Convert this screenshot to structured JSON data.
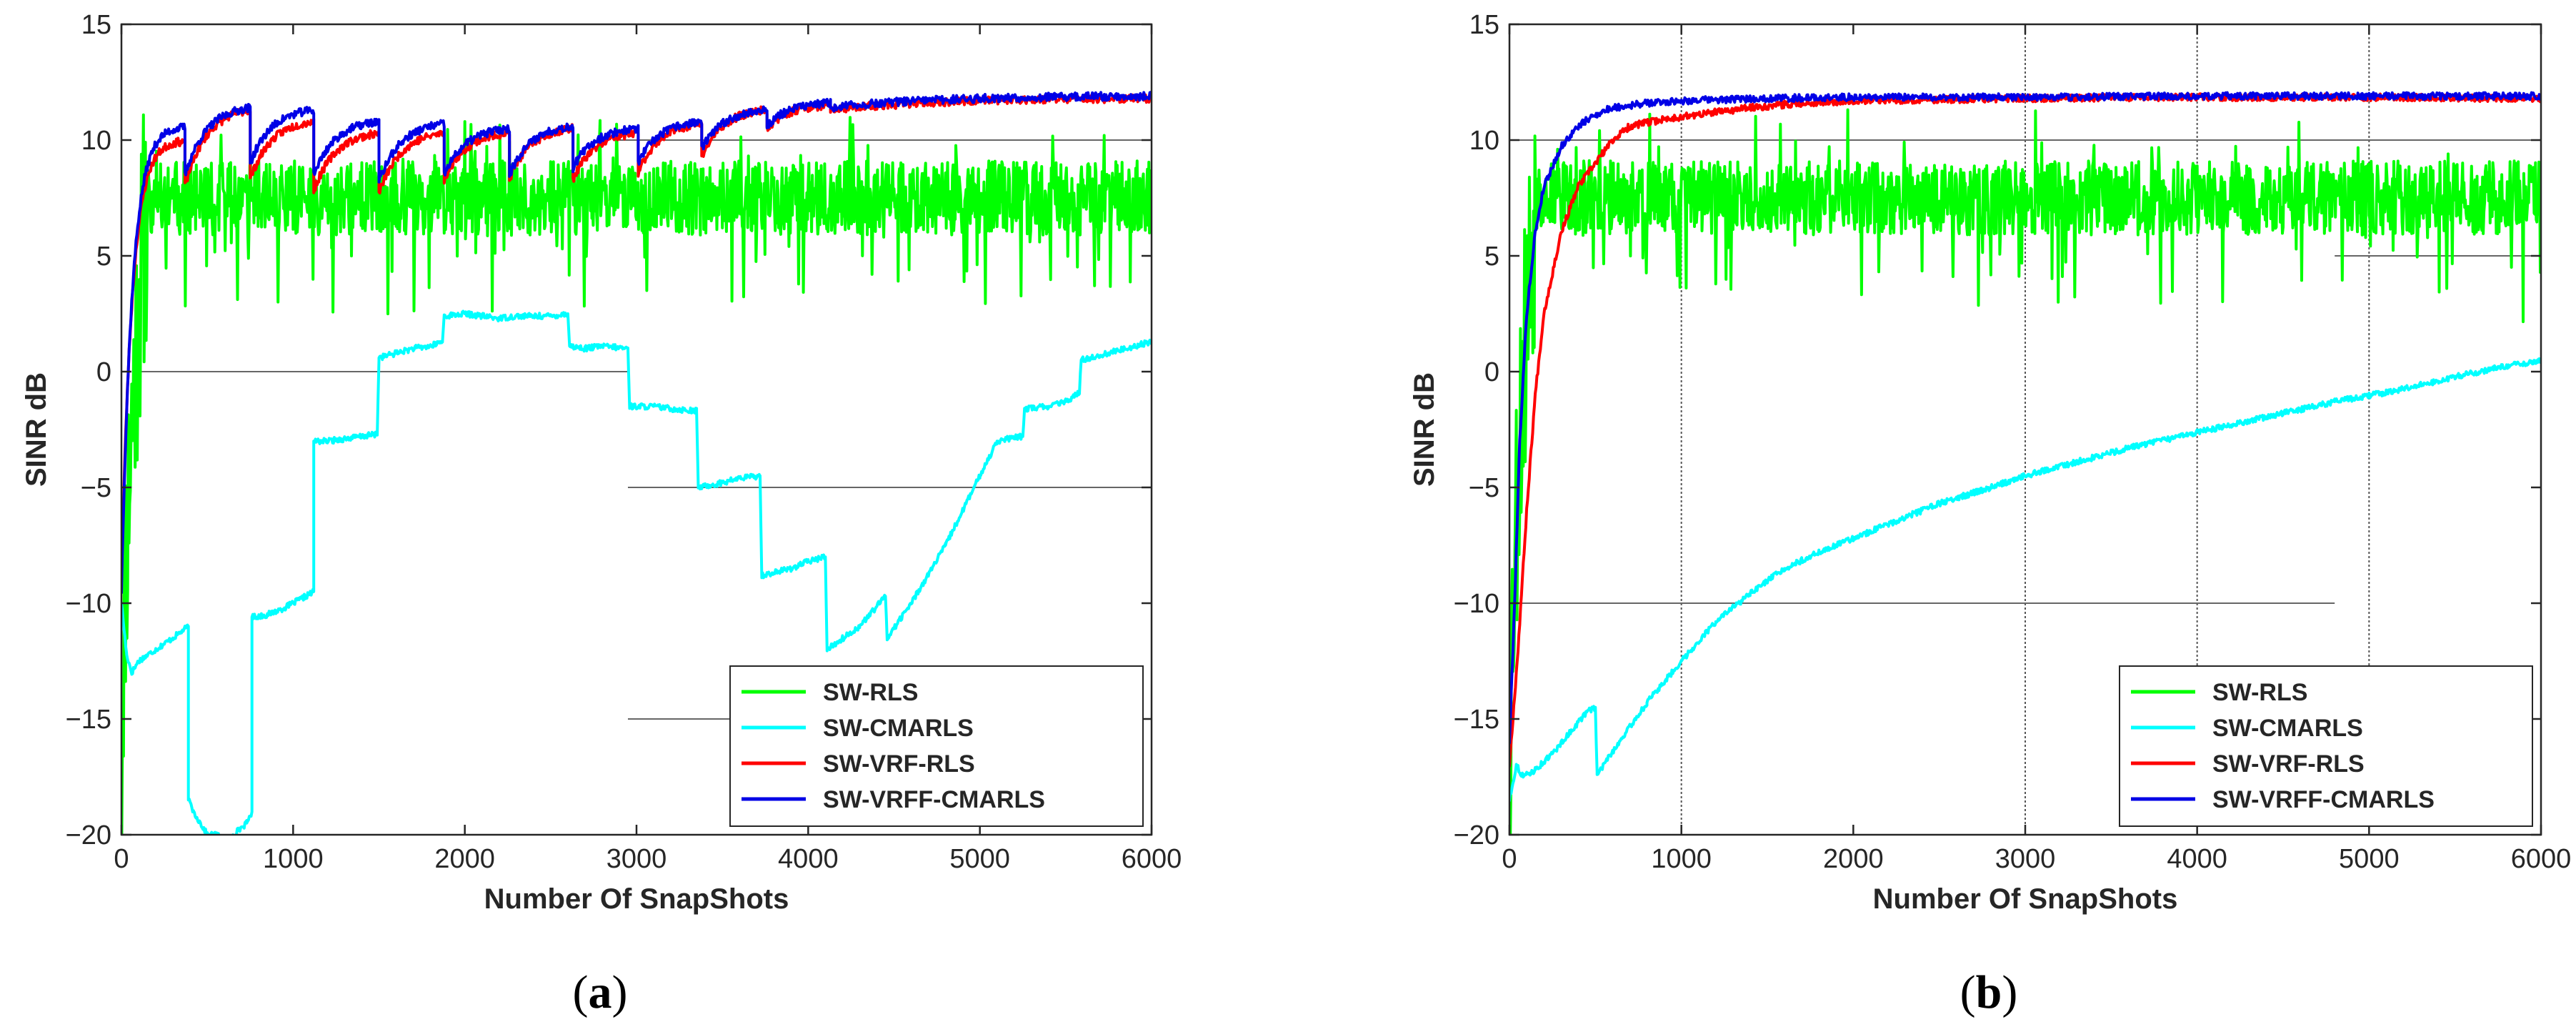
{
  "chart_data": [
    {
      "type": "line",
      "panel_label": "a",
      "xlabel": "Number Of SnapShots",
      "ylabel": "SINR dB",
      "xlim": [
        0,
        6000
      ],
      "ylim": [
        -20,
        15
      ],
      "xticks": [
        0,
        1000,
        2000,
        3000,
        4000,
        5000,
        6000
      ],
      "yticks": [
        -20,
        -15,
        -10,
        -5,
        0,
        5,
        10,
        15
      ],
      "legend_position": "bottom-right",
      "reference_lines": [
        {
          "y": 10,
          "x": [
            2900,
            6000
          ]
        },
        {
          "y": 0,
          "x": [
            100,
            2950
          ]
        },
        {
          "y": -5,
          "x": [
            2950,
            6000
          ]
        },
        {
          "y": -15,
          "x": [
            2950,
            6000
          ]
        }
      ],
      "series": [
        {
          "name": "SW-RLS",
          "color": "#00ff00",
          "kind": "noisy",
          "start": -19,
          "rise_end": 150,
          "mean": 7.5,
          "amp": 1.6,
          "seed": 11
        },
        {
          "name": "SW-CMARLS",
          "color": "#00ffff",
          "kind": "path",
          "x": [
            0,
            30,
            60,
            100,
            200,
            300,
            390,
            390,
            420,
            500,
            560,
            600,
            650,
            730,
            760,
            760,
            850,
            950,
            1050,
            1120,
            1120,
            1200,
            1300,
            1400,
            1490,
            1500,
            1600,
            1700,
            1800,
            1870,
            1880,
            2000,
            2100,
            2200,
            2300,
            2500,
            2600,
            2610,
            2700,
            2800,
            2950,
            2960,
            3100,
            3200,
            3350,
            3360,
            3500,
            3600,
            3720,
            3730,
            3900,
            4000,
            4100,
            4110,
            4300,
            4450,
            4460,
            4600,
            4800,
            4900,
            5000,
            5100,
            5250,
            5260,
            5400,
            5500,
            5580,
            5590,
            5700,
            5800,
            5900,
            6000
          ],
          "y": [
            -10,
            -12.2,
            -13,
            -12.5,
            -12,
            -11.5,
            -11,
            -18.5,
            -19,
            -20,
            -20,
            -20.5,
            -20,
            -19.5,
            -19,
            -10.6,
            -10.5,
            -10.2,
            -9.8,
            -9.5,
            -3,
            -3,
            -2.9,
            -2.8,
            -2.7,
            0.6,
            0.8,
            1,
            1.1,
            1.3,
            2.4,
            2.5,
            2.4,
            2.3,
            2.4,
            2.4,
            2.5,
            1.1,
            1.0,
            1.1,
            1.0,
            -1.5,
            -1.5,
            -1.6,
            -1.7,
            -5,
            -4.8,
            -4.6,
            -4.5,
            -8.8,
            -8.5,
            -8.2,
            -8,
            -12,
            -11,
            -9.7,
            -11.5,
            -10,
            -7.5,
            -6,
            -4.5,
            -3,
            -2.8,
            -1.6,
            -1.5,
            -1.3,
            -0.9,
            0.5,
            0.7,
            0.9,
            1.1,
            1.3
          ]
        },
        {
          "name": "SW-VRF-RLS",
          "color": "#ff0000",
          "kind": "sawtooth",
          "start": -9,
          "resets": [
            0,
            370,
            750,
            1120,
            1500,
            1880,
            2260,
            2630,
            3010,
            3380,
            3760,
            4130
          ],
          "after": [
            7,
            8,
            8.3,
            7.8,
            7.7,
            8.3,
            8.3,
            8.3,
            8.6,
            9.3,
            10.5,
            11.3
          ],
          "before": [
            10,
            11.3,
            10.8,
            10.3,
            10.3,
            10.3,
            10.5,
            10.3,
            10.7,
            11.3,
            11.5,
            11.7
          ],
          "final": 11.8,
          "seed": 23
        },
        {
          "name": "SW-VRFF-CMARLS",
          "color": "#0000e6",
          "kind": "sawtooth",
          "start": -9.5,
          "resets": [
            0,
            370,
            750,
            1120,
            1500,
            1880,
            2260,
            2630,
            3010,
            3380,
            3760,
            4130
          ],
          "after": [
            8,
            8.5,
            9,
            8.5,
            8.2,
            8.5,
            8.5,
            8.8,
            9,
            9.6,
            10.6,
            11.4
          ],
          "before": [
            10.6,
            11.4,
            11.3,
            10.8,
            10.7,
            10.5,
            10.6,
            10.5,
            10.8,
            11.3,
            11.6,
            11.8
          ],
          "final": 11.9,
          "seed": 37
        }
      ]
    },
    {
      "type": "line",
      "panel_label": "b",
      "xlabel": "Number Of SnapShots",
      "ylabel": "SINR dB",
      "xlim": [
        0,
        6000
      ],
      "ylim": [
        -20,
        15
      ],
      "xticks": [
        0,
        1000,
        2000,
        3000,
        4000,
        5000,
        6000
      ],
      "yticks": [
        -20,
        -15,
        -10,
        -5,
        0,
        5,
        10,
        15
      ],
      "legend_position": "bottom-right",
      "grid_x": [
        1000,
        3000,
        4000,
        5000
      ],
      "reference_lines": [
        {
          "y": 10,
          "x": [
            0,
            6000
          ]
        },
        {
          "y": 5,
          "x": [
            4800,
            6000
          ]
        },
        {
          "y": -10,
          "x": [
            0,
            4800
          ]
        }
      ],
      "series": [
        {
          "name": "SW-RLS",
          "color": "#00ff00",
          "kind": "noisy",
          "start": -20,
          "rise_end": 150,
          "mean": 7.5,
          "amp": 1.6,
          "seed": 53
        },
        {
          "name": "SW-CMARLS",
          "color": "#00ffff",
          "kind": "path",
          "x": [
            0,
            40,
            80,
            150,
            250,
            350,
            450,
            500,
            510,
            600,
            800,
            1000,
            1200,
            1400,
            1600,
            1800,
            2000,
            2200,
            2500,
            2800,
            3000,
            3300,
            3600,
            3900,
            4200,
            4500,
            4800,
            5100,
            5400,
            5700,
            6000
          ],
          "y": [
            -18.5,
            -17,
            -17.5,
            -17.2,
            -16.5,
            -15.6,
            -14.7,
            -14.5,
            -17.4,
            -16.4,
            -14.3,
            -12.5,
            -10.8,
            -9.6,
            -8.5,
            -7.8,
            -7.2,
            -6.6,
            -5.7,
            -5.0,
            -4.5,
            -3.9,
            -3.3,
            -2.8,
            -2.3,
            -1.8,
            -1.3,
            -0.9,
            -0.4,
            0.1,
            0.5
          ]
        },
        {
          "name": "SW-VRF-RLS",
          "color": "#ff0000",
          "kind": "smooth",
          "points": [
            [
              0,
              -17
            ],
            [
              50,
              -12
            ],
            [
              100,
              -6
            ],
            [
              150,
              -1
            ],
            [
              200,
              2.5
            ],
            [
              300,
              6
            ],
            [
              400,
              8
            ],
            [
              500,
              9
            ],
            [
              600,
              10
            ],
            [
              700,
              10.6
            ],
            [
              900,
              10.9
            ],
            [
              1100,
              11.1
            ],
            [
              1400,
              11.4
            ],
            [
              1700,
              11.6
            ],
            [
              2000,
              11.7
            ],
            [
              2500,
              11.75
            ],
            [
              3000,
              11.8
            ],
            [
              4000,
              11.85
            ],
            [
              5000,
              11.85
            ],
            [
              6000,
              11.8
            ]
          ],
          "seed": 67
        },
        {
          "name": "SW-VRFF-CMARLS",
          "color": "#0000e6",
          "kind": "smooth",
          "points": [
            [
              0,
              -16
            ],
            [
              30,
              -10
            ],
            [
              60,
              -3
            ],
            [
              100,
              2.5
            ],
            [
              150,
              6
            ],
            [
              200,
              8
            ],
            [
              300,
              9.7
            ],
            [
              400,
              10.6
            ],
            [
              500,
              11.1
            ],
            [
              600,
              11.4
            ],
            [
              800,
              11.6
            ],
            [
              1000,
              11.7
            ],
            [
              1500,
              11.8
            ],
            [
              2000,
              11.85
            ],
            [
              3000,
              11.85
            ],
            [
              4000,
              11.9
            ],
            [
              5000,
              11.9
            ],
            [
              6000,
              11.9
            ]
          ],
          "seed": 79
        }
      ]
    }
  ]
}
